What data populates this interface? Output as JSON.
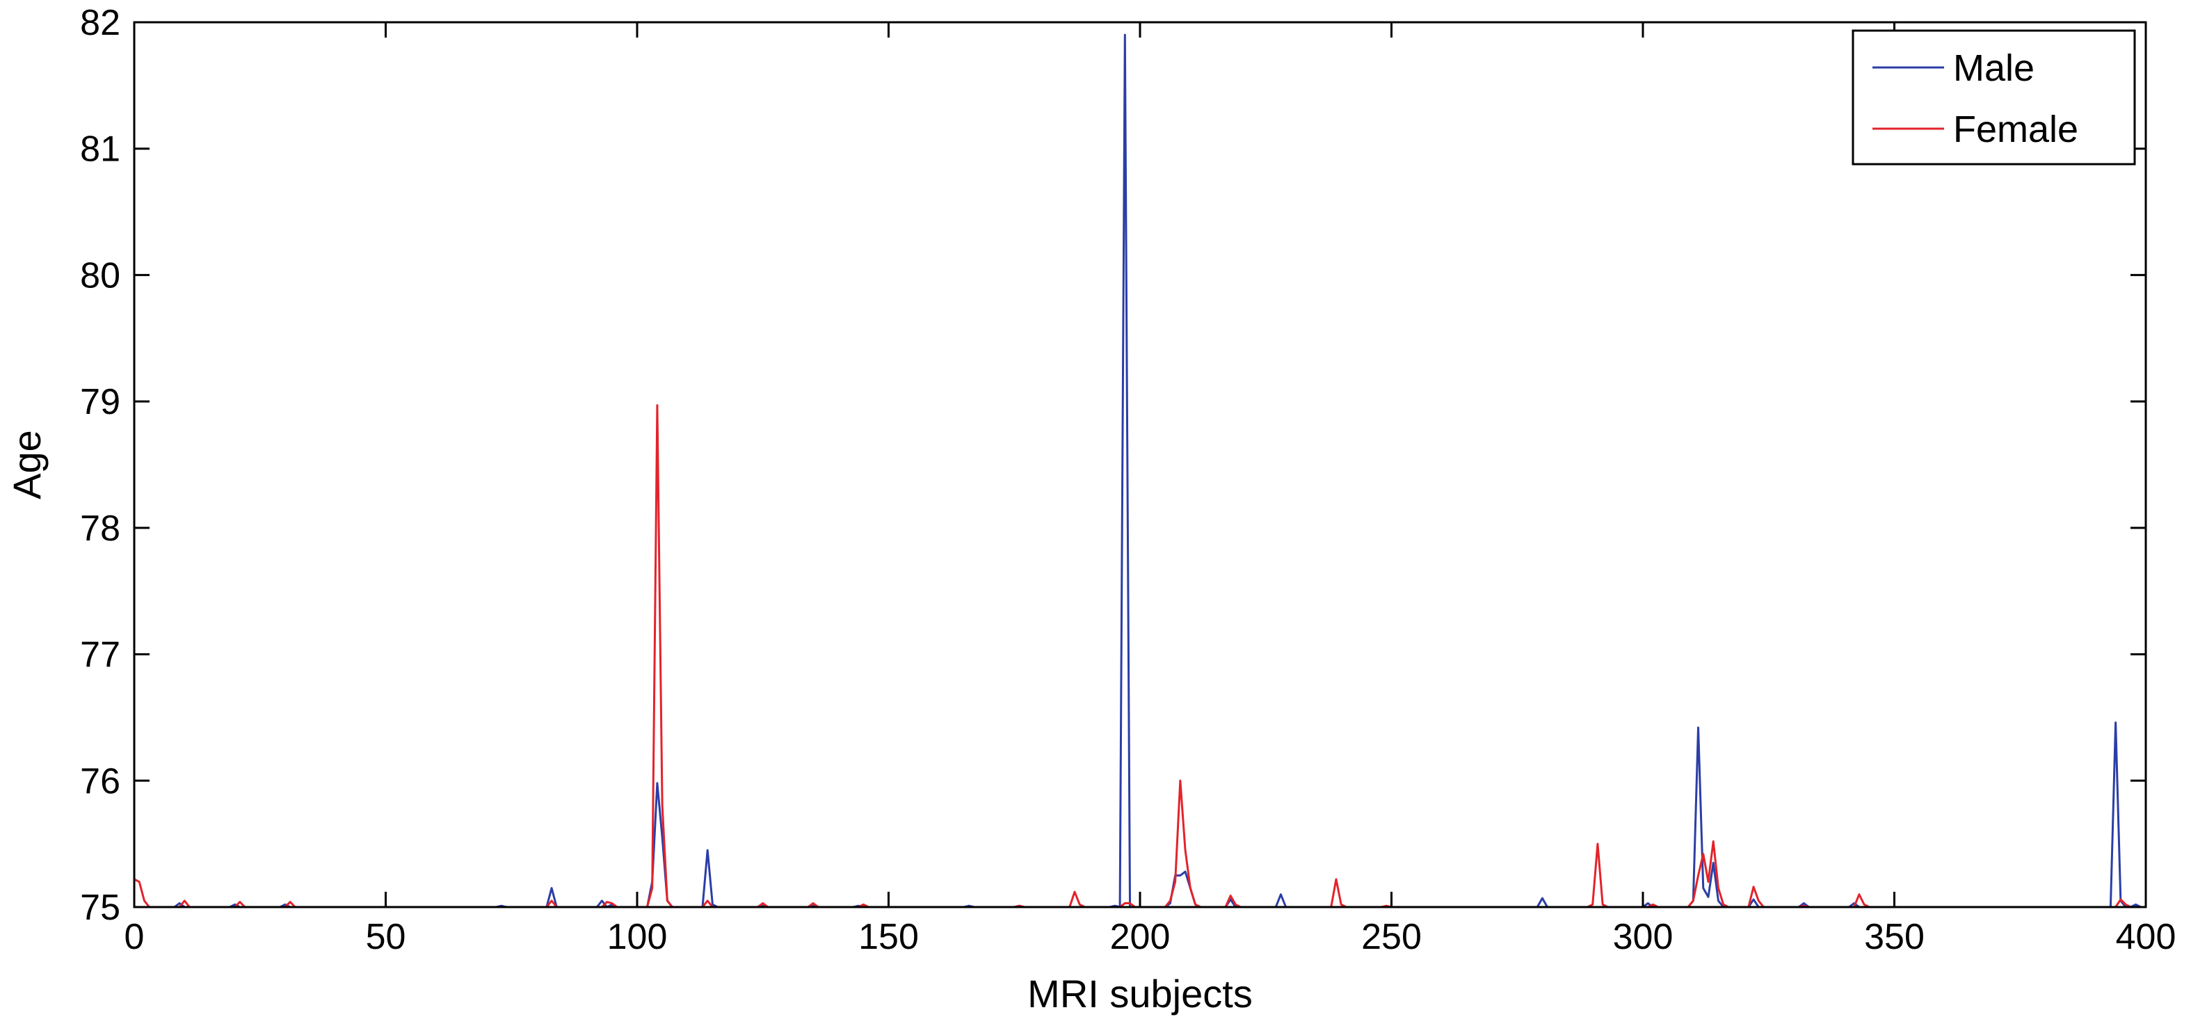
{
  "chart_data": {
    "type": "line",
    "title": "",
    "xlabel": "MRI subjects",
    "ylabel": "Age",
    "xlim": [
      0,
      400
    ],
    "ylim": [
      75,
      82
    ],
    "xticks": [
      0,
      50,
      100,
      150,
      200,
      250,
      300,
      350,
      400
    ],
    "yticks": [
      75,
      76,
      77,
      78,
      79,
      80,
      81,
      82
    ],
    "xtick_labels": [
      "0",
      "50",
      "100",
      "150",
      "200",
      "250",
      "300",
      "350",
      "400"
    ],
    "ytick_labels": [
      "75",
      "76",
      "77",
      "78",
      "79",
      "80",
      "81",
      "82"
    ],
    "grid": false,
    "legend_position": "top-right",
    "baseline": 75,
    "series": [
      {
        "name": "Male",
        "color": "#2b3ea6",
        "peaks": [
          [
            9,
            75.03
          ],
          [
            20,
            75.02
          ],
          [
            30,
            75.02
          ],
          [
            73,
            75.01
          ],
          [
            83,
            75.15
          ],
          [
            93,
            75.05
          ],
          [
            95,
            75.02
          ],
          [
            103,
            75.2
          ],
          [
            104,
            75.98
          ],
          [
            105,
            75.55
          ],
          [
            106,
            75.05
          ],
          [
            114,
            75.45
          ],
          [
            115,
            75.02
          ],
          [
            125,
            75.01
          ],
          [
            135,
            75.01
          ],
          [
            144,
            75.01
          ],
          [
            166,
            75.01
          ],
          [
            176,
            75.01
          ],
          [
            195,
            75.01
          ],
          [
            196,
            75.0
          ],
          [
            197,
            81.9
          ],
          [
            198,
            75.0
          ],
          [
            206,
            75.03
          ],
          [
            207,
            75.25
          ],
          [
            208,
            75.25
          ],
          [
            209,
            75.28
          ],
          [
            210,
            75.15
          ],
          [
            211,
            75.02
          ],
          [
            218,
            75.06
          ],
          [
            228,
            75.1
          ],
          [
            280,
            75.07
          ],
          [
            301,
            75.03
          ],
          [
            310,
            75.05
          ],
          [
            311,
            76.42
          ],
          [
            312,
            75.15
          ],
          [
            313,
            75.08
          ],
          [
            314,
            75.35
          ],
          [
            315,
            75.05
          ],
          [
            322,
            75.06
          ],
          [
            332,
            75.03
          ],
          [
            342,
            75.03
          ],
          [
            393,
            75.0
          ],
          [
            394,
            76.46
          ],
          [
            395,
            75.05
          ],
          [
            398,
            75.02
          ]
        ]
      },
      {
        "name": "Female",
        "color": "#e3232b",
        "peaks": [
          [
            0,
            75.22
          ],
          [
            1,
            75.2
          ],
          [
            2,
            75.05
          ],
          [
            10,
            75.05
          ],
          [
            21,
            75.04
          ],
          [
            31,
            75.04
          ],
          [
            83,
            75.05
          ],
          [
            94,
            75.04
          ],
          [
            95,
            75.03
          ],
          [
            103,
            75.15
          ],
          [
            104,
            78.97
          ],
          [
            105,
            75.8
          ],
          [
            106,
            75.05
          ],
          [
            114,
            75.05
          ],
          [
            125,
            75.03
          ],
          [
            135,
            75.03
          ],
          [
            145,
            75.02
          ],
          [
            176,
            75.01
          ],
          [
            187,
            75.12
          ],
          [
            188,
            75.02
          ],
          [
            197,
            75.03
          ],
          [
            198,
            75.03
          ],
          [
            206,
            75.05
          ],
          [
            207,
            75.2
          ],
          [
            208,
            76.0
          ],
          [
            209,
            75.45
          ],
          [
            210,
            75.15
          ],
          [
            211,
            75.02
          ],
          [
            218,
            75.09
          ],
          [
            219,
            75.02
          ],
          [
            239,
            75.22
          ],
          [
            240,
            75.02
          ],
          [
            249,
            75.01
          ],
          [
            290,
            75.02
          ],
          [
            291,
            75.5
          ],
          [
            292,
            75.02
          ],
          [
            302,
            75.02
          ],
          [
            310,
            75.05
          ],
          [
            311,
            75.25
          ],
          [
            312,
            75.42
          ],
          [
            313,
            75.2
          ],
          [
            314,
            75.52
          ],
          [
            315,
            75.15
          ],
          [
            316,
            75.02
          ],
          [
            322,
            75.16
          ],
          [
            323,
            75.05
          ],
          [
            332,
            75.01
          ],
          [
            343,
            75.1
          ],
          [
            344,
            75.02
          ],
          [
            395,
            75.06
          ],
          [
            396,
            75.02
          ]
        ]
      }
    ]
  }
}
